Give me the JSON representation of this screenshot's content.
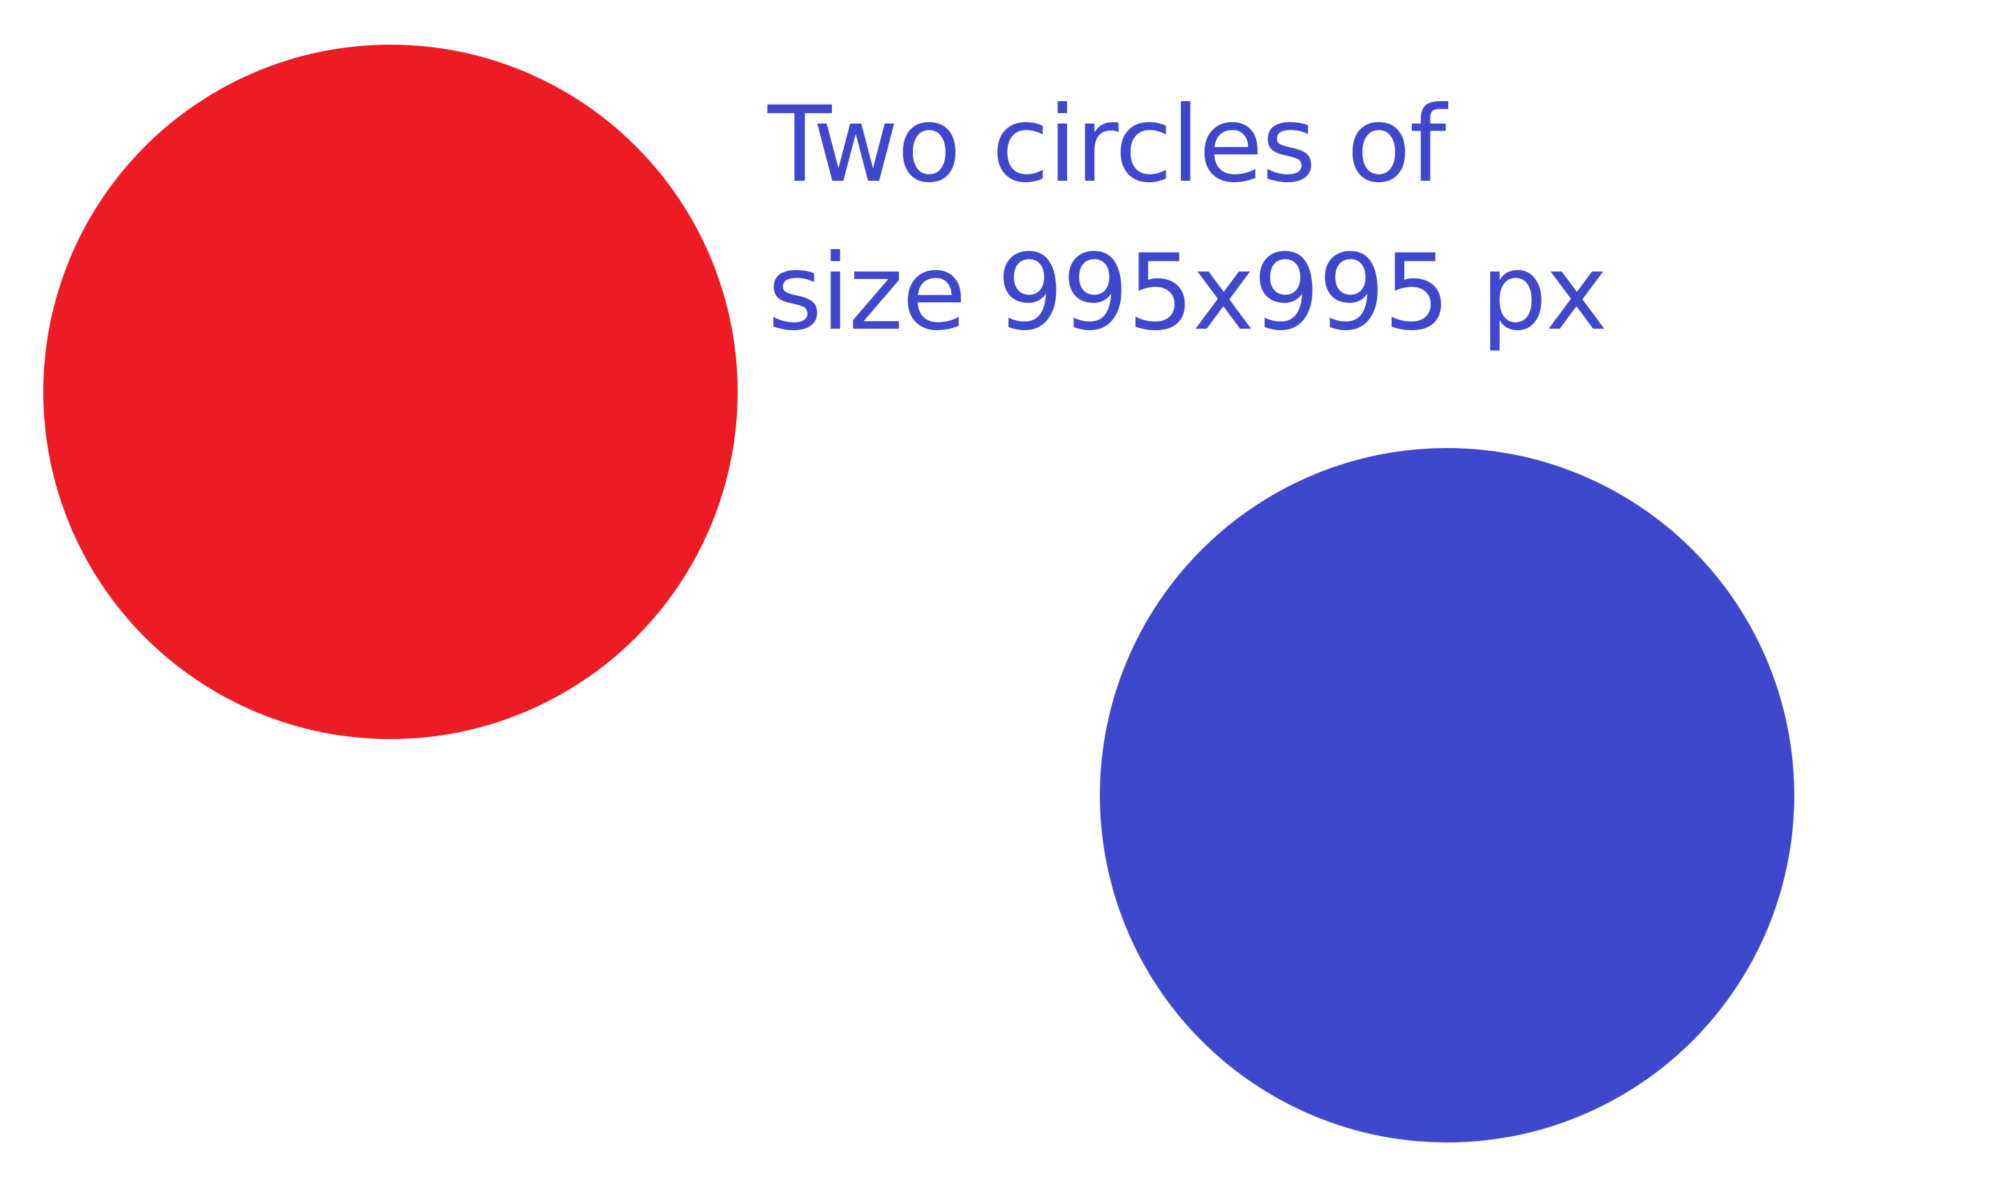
{
  "caption": {
    "line1": "Two circles of",
    "line2": "size 995x995 px"
  },
  "colors": {
    "red_circle": "#ED1C24",
    "blue_circle": "#3F48CC",
    "caption_text": "#3F48CC",
    "background": "#FFFFFF"
  }
}
